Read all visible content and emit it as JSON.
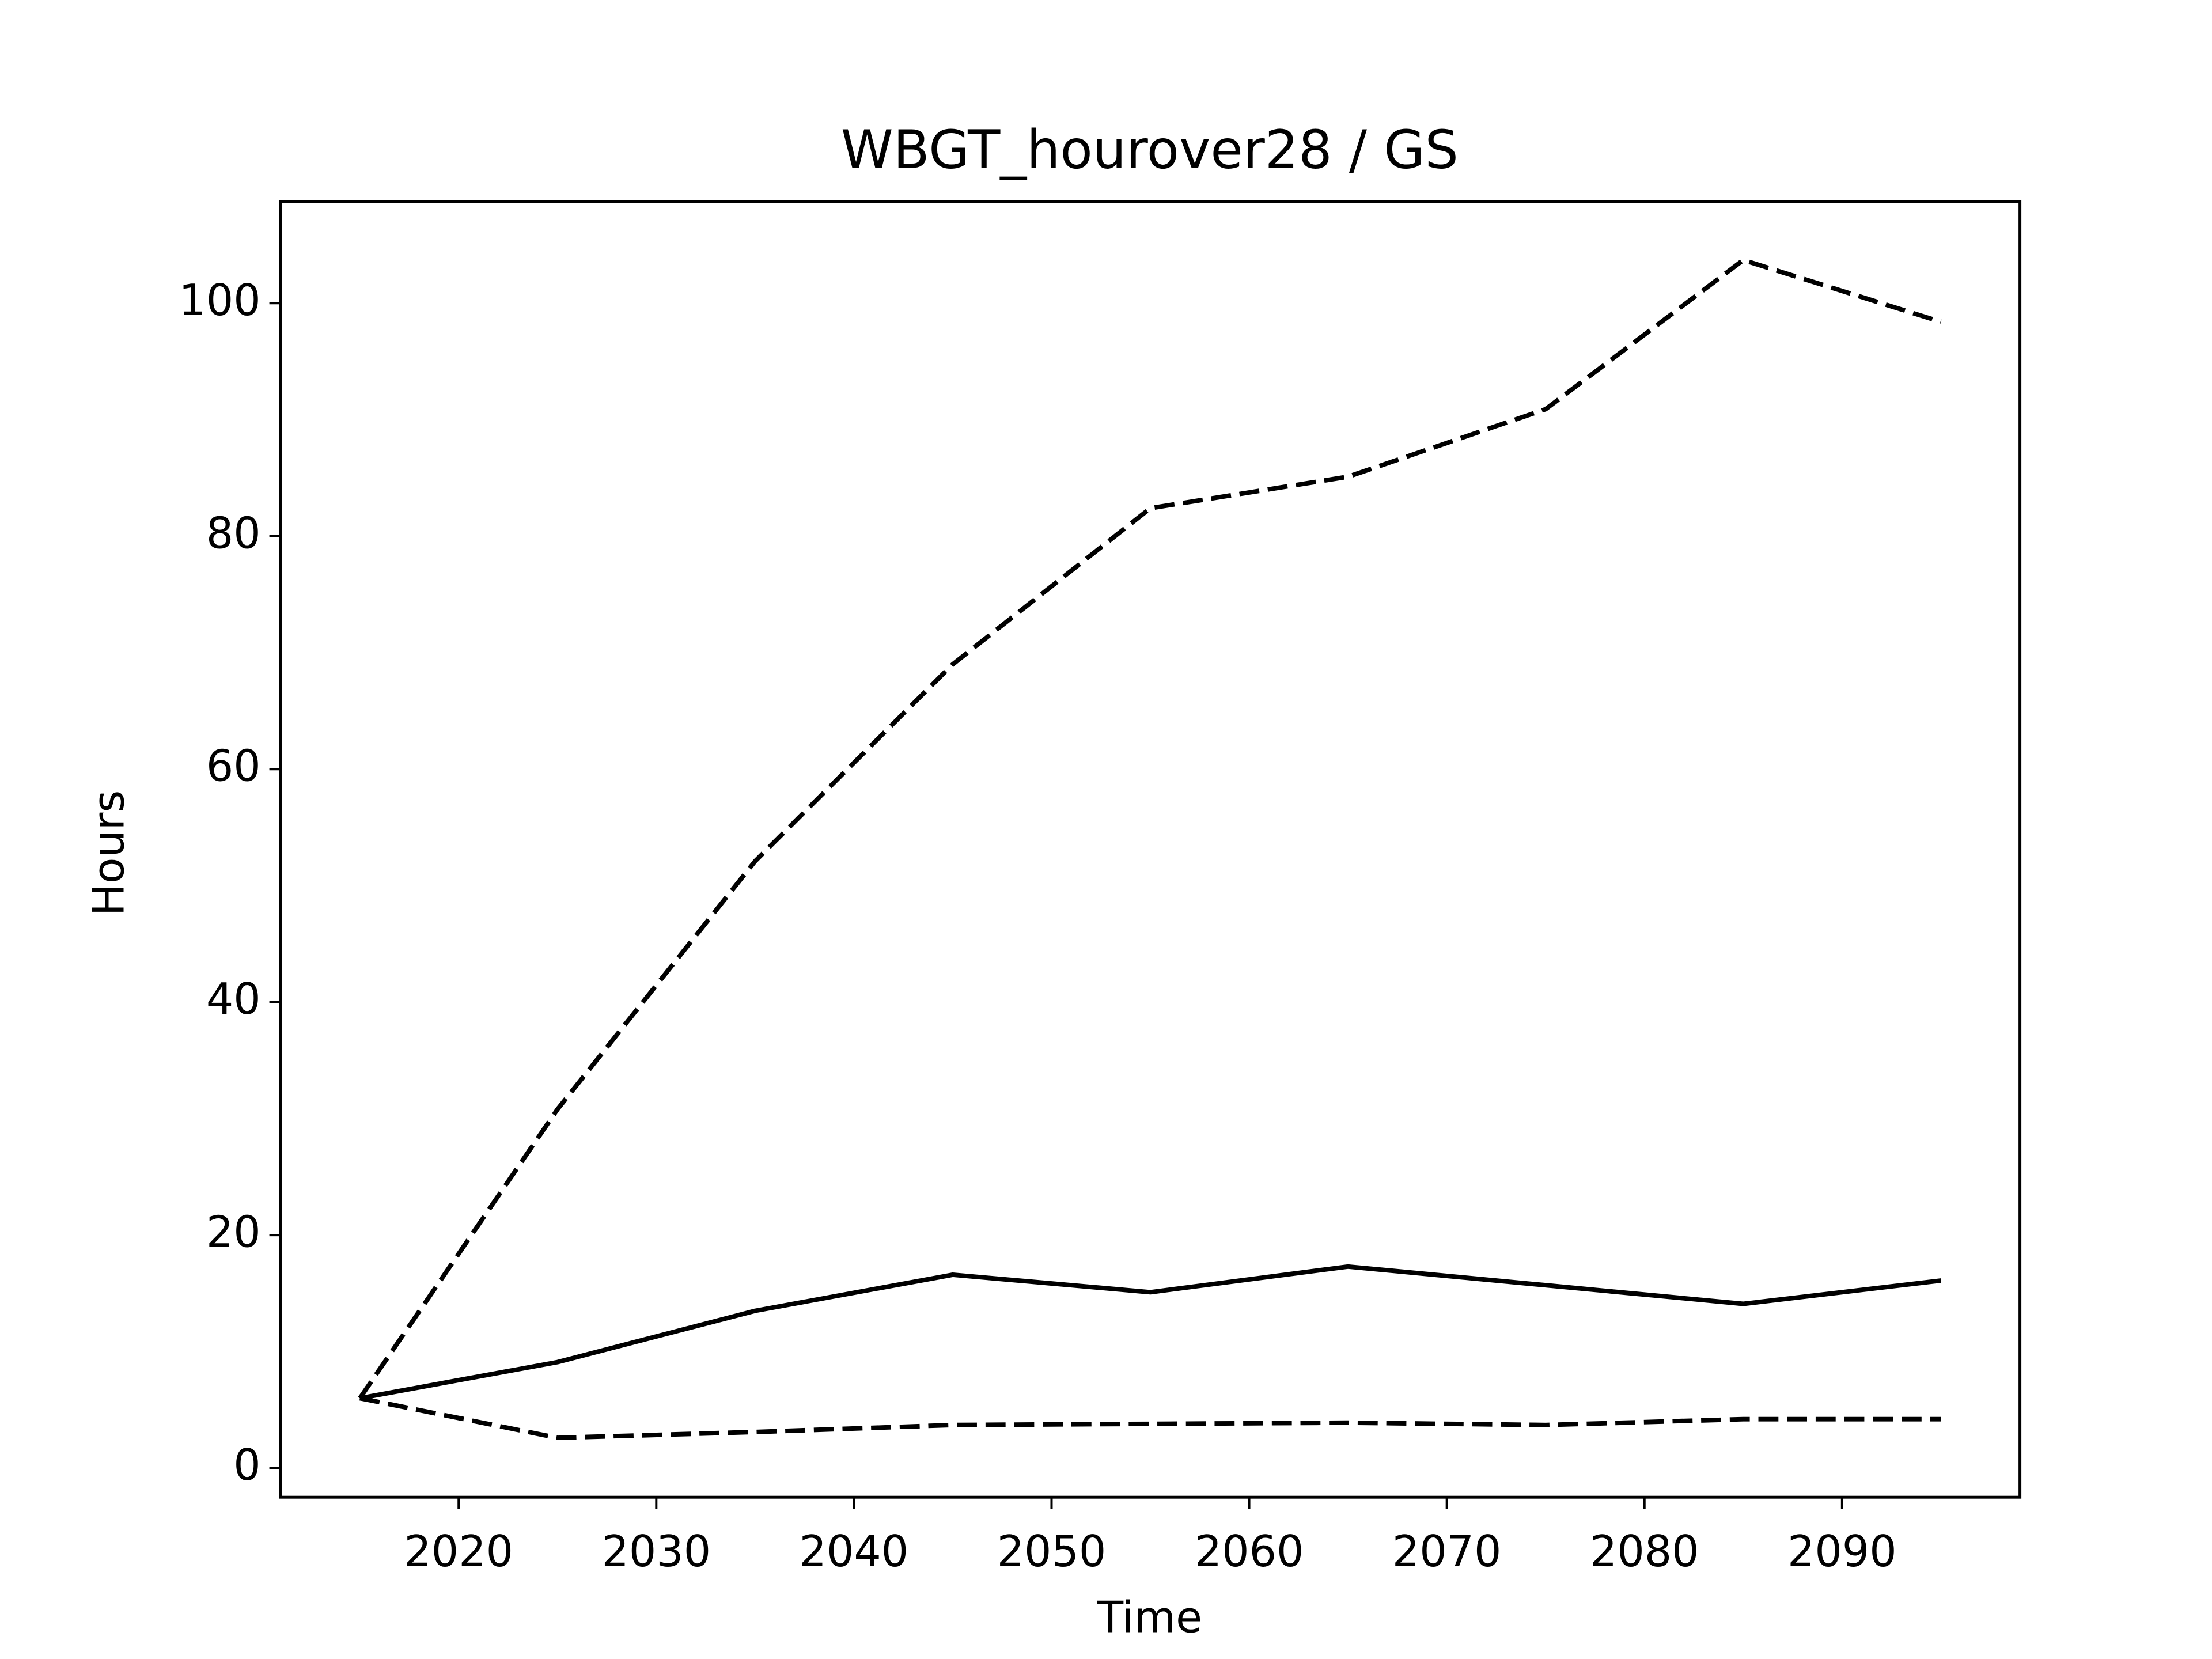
{
  "chart_data": {
    "type": "line",
    "title": "WBGT_hourover28 / GS",
    "x_label": "Time",
    "y_label": "Hours",
    "x": [
      2015,
      2025,
      2035,
      2045,
      2055,
      2065,
      2075,
      2085,
      2095
    ],
    "series": [
      {
        "color": "#000000",
        "style": "dashed",
        "values": [
          6.0,
          30.8,
          52.1,
          69.0,
          82.4,
          85.1,
          90.9,
          103.7,
          98.4
        ]
      },
      {
        "color": "#000000",
        "style": "solid",
        "values": [
          6.0,
          9.1,
          13.5,
          16.6,
          15.1,
          17.3,
          15.7,
          14.1,
          16.1
        ]
      },
      {
        "color": "#000000",
        "style": "dashed",
        "values": [
          6.0,
          2.6,
          3.1,
          3.7,
          3.8,
          3.9,
          3.7,
          4.2,
          4.2
        ]
      }
    ],
    "xlim": [
      2011,
      2099
    ],
    "ylim": [
      -2.5,
      108.7
    ],
    "xticks": [
      2020,
      2030,
      2040,
      2050,
      2060,
      2070,
      2080,
      2090
    ],
    "yticks": [
      0,
      20,
      40,
      60,
      80,
      100
    ],
    "grid": false
  }
}
